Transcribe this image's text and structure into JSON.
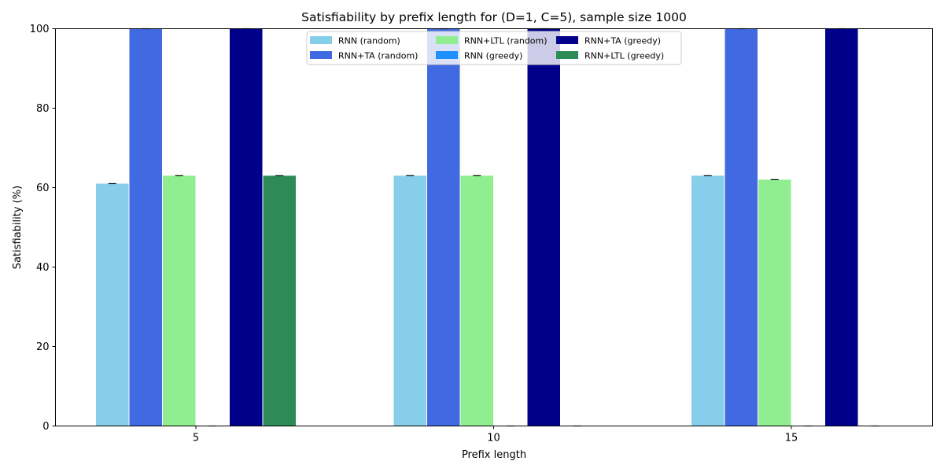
{
  "chart_data": {
    "type": "bar",
    "title": "Satisfiability by prefix length for (D=1, C=5), sample size 1000",
    "xlabel": "Prefix length",
    "ylabel": "Satisfiability (%)",
    "categories": [
      "5",
      "10",
      "15"
    ],
    "ylim": [
      0,
      100
    ],
    "yticks": [
      "0",
      "20",
      "40",
      "60",
      "80",
      "100"
    ],
    "grid": false,
    "legend_position": "top-center",
    "legend_columns": 3,
    "series": [
      {
        "name": "RNN (random)",
        "color": "#87ceeb",
        "values": [
          61,
          63,
          63
        ],
        "error_bars": true
      },
      {
        "name": "RNN+TA (random)",
        "color": "#4169e1",
        "values": [
          100,
          100,
          100
        ],
        "error_bars": true
      },
      {
        "name": "RNN+LTL (random)",
        "color": "#90ee90",
        "values": [
          63,
          63,
          62
        ],
        "error_bars": true
      },
      {
        "name": "RNN (greedy)",
        "color": "#1e90ff",
        "values": [
          0,
          0,
          0
        ],
        "error_bars": true
      },
      {
        "name": "RNN+TA (greedy)",
        "color": "#00008b",
        "values": [
          100,
          100,
          100
        ],
        "error_bars": true
      },
      {
        "name": "RNN+LTL (greedy)",
        "color": "#2e8b57",
        "values": [
          63,
          0,
          0
        ],
        "error_bars": true
      }
    ]
  }
}
